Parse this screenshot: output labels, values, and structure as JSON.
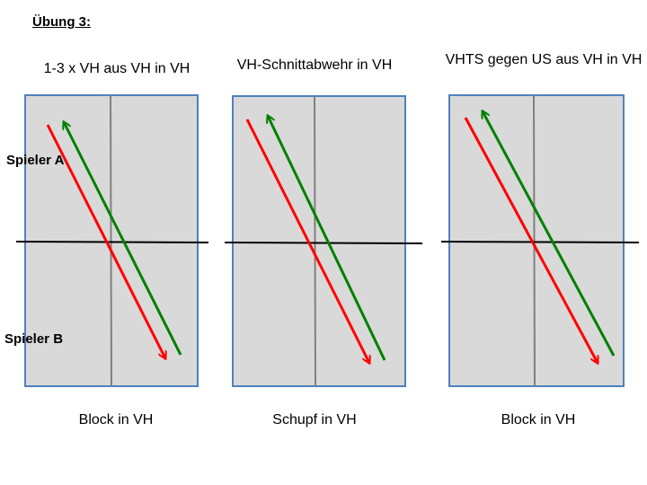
{
  "slide": {
    "title": "Übung 3:"
  },
  "players": {
    "a": "Spieler A",
    "b": "Spieler B"
  },
  "colors": {
    "table_fill": "#d9d9d9",
    "table_border": "#4f81bd",
    "center_line": "#808080",
    "net": "#000000",
    "red_arrow": "#ff0000",
    "green_arrow": "#008000"
  },
  "diagrams": [
    {
      "title": "1-3 x VH aus VH in VH",
      "caption": "Block in VH"
    },
    {
      "title": "VH-Schnittabwehr in VH",
      "caption": "Schupf in VH"
    },
    {
      "title": "VHTS gegen US aus VH in VH",
      "caption": "Block in VH"
    }
  ]
}
